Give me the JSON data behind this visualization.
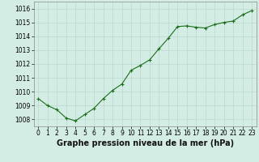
{
  "x": [
    0,
    1,
    2,
    3,
    4,
    5,
    6,
    7,
    8,
    9,
    10,
    11,
    12,
    13,
    14,
    15,
    16,
    17,
    18,
    19,
    20,
    21,
    22,
    23
  ],
  "y": [
    1009.5,
    1009.0,
    1008.7,
    1008.1,
    1007.9,
    1008.35,
    1008.8,
    1009.5,
    1010.1,
    1010.55,
    1011.55,
    1011.9,
    1012.3,
    1013.1,
    1013.85,
    1014.7,
    1014.75,
    1014.65,
    1014.6,
    1014.85,
    1015.0,
    1015.1,
    1015.55,
    1015.85
  ],
  "ylim": [
    1007.5,
    1016.5
  ],
  "xlim": [
    -0.5,
    23.5
  ],
  "yticks": [
    1008,
    1009,
    1010,
    1011,
    1012,
    1013,
    1014,
    1015,
    1016
  ],
  "xticks": [
    0,
    1,
    2,
    3,
    4,
    5,
    6,
    7,
    8,
    9,
    10,
    11,
    12,
    13,
    14,
    15,
    16,
    17,
    18,
    19,
    20,
    21,
    22,
    23
  ],
  "line_color": "#1a6e1a",
  "marker_color": "#1a6e1a",
  "bg_color": "#d4ede4",
  "grid_color": "#b8d8cc",
  "xlabel": "Graphe pression niveau de la mer (hPa)",
  "xlabel_fontsize": 7,
  "tick_fontsize": 5.5,
  "title": ""
}
